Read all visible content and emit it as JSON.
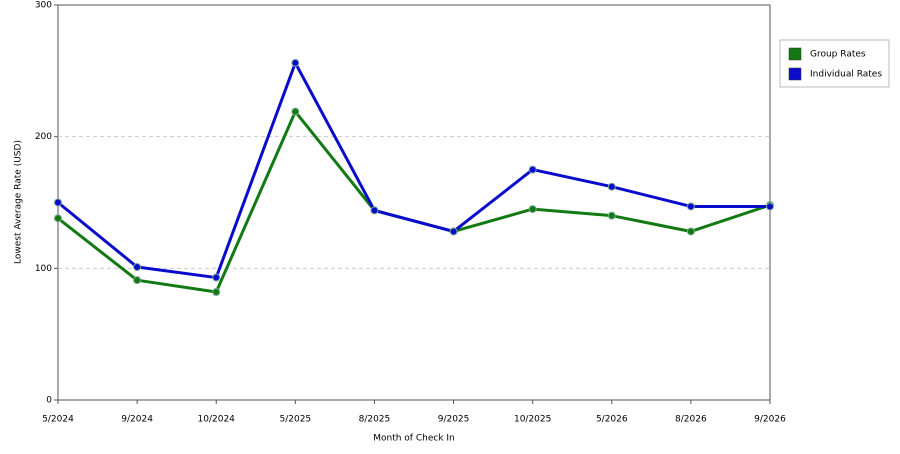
{
  "chart_data": {
    "type": "line",
    "x_label": "Month of Check In",
    "y_label": "Lowest Average Rate (USD)",
    "categories": [
      "5/2024",
      "9/2024",
      "10/2024",
      "5/2025",
      "8/2025",
      "9/2025",
      "10/2025",
      "5/2026",
      "8/2026",
      "9/2026"
    ],
    "series": [
      {
        "name": "Group Rates",
        "color": "#137a13",
        "values": [
          138,
          91,
          82,
          219,
          144,
          128,
          145,
          140,
          128,
          148
        ]
      },
      {
        "name": "Individual Rates",
        "color": "#0b0bcc",
        "values": [
          150,
          101,
          93,
          256,
          144,
          128,
          175,
          162,
          147,
          147
        ]
      }
    ],
    "ylim": [
      0,
      300
    ],
    "yticks": [
      0,
      100,
      200,
      300
    ],
    "grid": true,
    "legend": "right"
  }
}
